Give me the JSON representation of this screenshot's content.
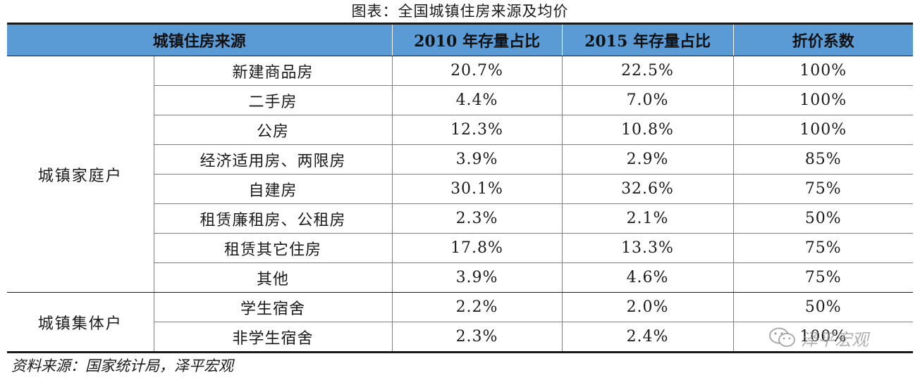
{
  "title": "图表：全国城镇住房来源及均价",
  "columns": [
    "城镇住房来源",
    "2010 年存量占比",
    "2015 年存量占比",
    "折价系数"
  ],
  "groups": [
    {
      "label": "城镇家庭户",
      "rows": [
        {
          "name": "新建商品房",
          "y2010": "20.7%",
          "y2015": "22.5%",
          "coef": "100%"
        },
        {
          "name": "二手房",
          "y2010": "4.4%",
          "y2015": "7.0%",
          "coef": "100%"
        },
        {
          "name": "公房",
          "y2010": "12.3%",
          "y2015": "10.8%",
          "coef": "100%"
        },
        {
          "name": "经济适用房、两限房",
          "y2010": "3.9%",
          "y2015": "2.9%",
          "coef": "85%"
        },
        {
          "name": "自建房",
          "y2010": "30.1%",
          "y2015": "32.6%",
          "coef": "75%"
        },
        {
          "name": "租赁廉租房、公租房",
          "y2010": "2.3%",
          "y2015": "2.1%",
          "coef": "50%"
        },
        {
          "name": "租赁其它住房",
          "y2010": "17.8%",
          "y2015": "13.3%",
          "coef": "75%"
        },
        {
          "name": "其他",
          "y2010": "3.9%",
          "y2015": "4.6%",
          "coef": "75%"
        }
      ]
    },
    {
      "label": "城镇集体户",
      "rows": [
        {
          "name": "学生宿舍",
          "y2010": "2.2%",
          "y2015": "2.0%",
          "coef": "50%"
        },
        {
          "name": "非学生宿舍",
          "y2010": "2.3%",
          "y2015": "2.4%",
          "coef": "100%"
        }
      ]
    }
  ],
  "source": "资料来源：国家统计局，泽平宏观",
  "watermark": {
    "text": "泽平宏观",
    "icon": "wechat-icon"
  }
}
